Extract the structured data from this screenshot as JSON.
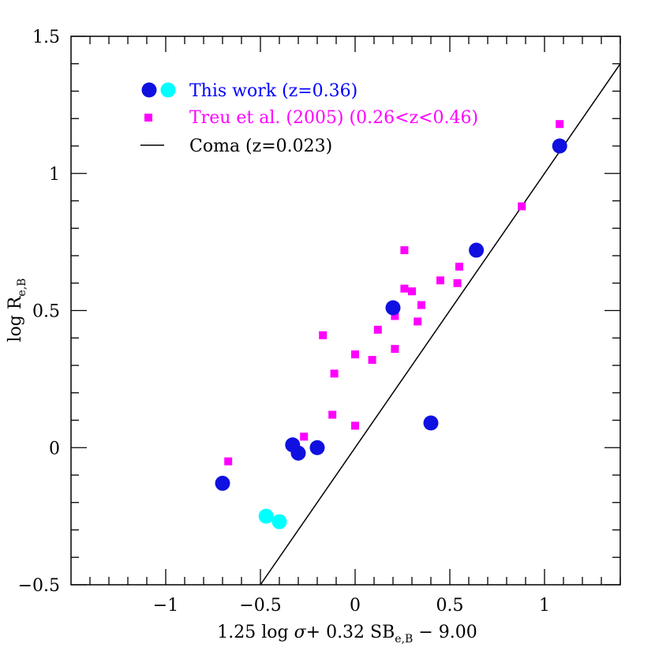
{
  "chart_data": {
    "type": "scatter",
    "title": "",
    "xlabel": {
      "prefix": "1.25 log ",
      "sigma": "σ",
      "mid": "+ 0.32 SB",
      "sub": "e,B",
      "suffix": " − 9.00"
    },
    "ylabel": {
      "prefix": "log R",
      "sub": "e,B"
    },
    "xlim": [
      -1.5,
      1.4
    ],
    "ylim": [
      -0.5,
      1.5
    ],
    "x_ticks": [
      {
        "value": -1,
        "label": "−1"
      },
      {
        "value": -0.5,
        "label": "−0.5"
      },
      {
        "value": 0,
        "label": "0"
      },
      {
        "value": 0.5,
        "label": "0.5"
      },
      {
        "value": 1,
        "label": "1"
      }
    ],
    "y_ticks": [
      {
        "value": -0.5,
        "label": "−0.5"
      },
      {
        "value": 0,
        "label": "0"
      },
      {
        "value": 0.5,
        "label": "0.5"
      },
      {
        "value": 1,
        "label": "1"
      },
      {
        "value": 1.5,
        "label": "1.5"
      }
    ],
    "grid": false,
    "legend_position": "top-left",
    "legend": [
      {
        "label": "This work (z=0.36)",
        "color": "#0000ff",
        "marker": "circle-pair",
        "colors": [
          "#1010e0",
          "#00ffff"
        ]
      },
      {
        "label": "Treu et al. (2005) (0.26<z<0.46)",
        "color": "#ff00ff",
        "marker": "square"
      },
      {
        "label": "Coma (z=0.023)",
        "color": "#000000",
        "marker": "line"
      }
    ],
    "series": [
      {
        "kind": "circle",
        "color": "#1010e0",
        "points": [
          [
            -0.7,
            -0.13
          ],
          [
            -0.33,
            0.01
          ],
          [
            -0.3,
            -0.02
          ],
          [
            -0.2,
            0.0
          ],
          [
            0.2,
            0.51
          ],
          [
            0.4,
            0.09
          ],
          [
            0.64,
            0.72
          ],
          [
            1.08,
            1.1
          ]
        ]
      },
      {
        "kind": "circle",
        "color": "#00ffff",
        "points": [
          [
            -0.47,
            -0.25
          ],
          [
            -0.4,
            -0.27
          ]
        ]
      },
      {
        "kind": "square",
        "color": "#ff00ff",
        "points": [
          [
            -0.67,
            -0.05
          ],
          [
            -0.27,
            0.04
          ],
          [
            -0.17,
            0.41
          ],
          [
            -0.12,
            0.12
          ],
          [
            -0.11,
            0.27
          ],
          [
            0.0,
            0.34
          ],
          [
            0.0,
            0.08
          ],
          [
            0.09,
            0.32
          ],
          [
            0.12,
            0.43
          ],
          [
            0.21,
            0.48
          ],
          [
            0.21,
            0.36
          ],
          [
            0.26,
            0.72
          ],
          [
            0.26,
            0.58
          ],
          [
            0.3,
            0.57
          ],
          [
            0.33,
            0.46
          ],
          [
            0.35,
            0.52
          ],
          [
            0.45,
            0.61
          ],
          [
            0.54,
            0.6
          ],
          [
            0.55,
            0.66
          ],
          [
            0.88,
            0.88
          ],
          [
            1.08,
            1.18
          ]
        ]
      },
      {
        "kind": "line",
        "color": "#000000",
        "points": [
          [
            -0.5,
            -0.5
          ],
          [
            1.4,
            1.4
          ]
        ]
      }
    ]
  }
}
